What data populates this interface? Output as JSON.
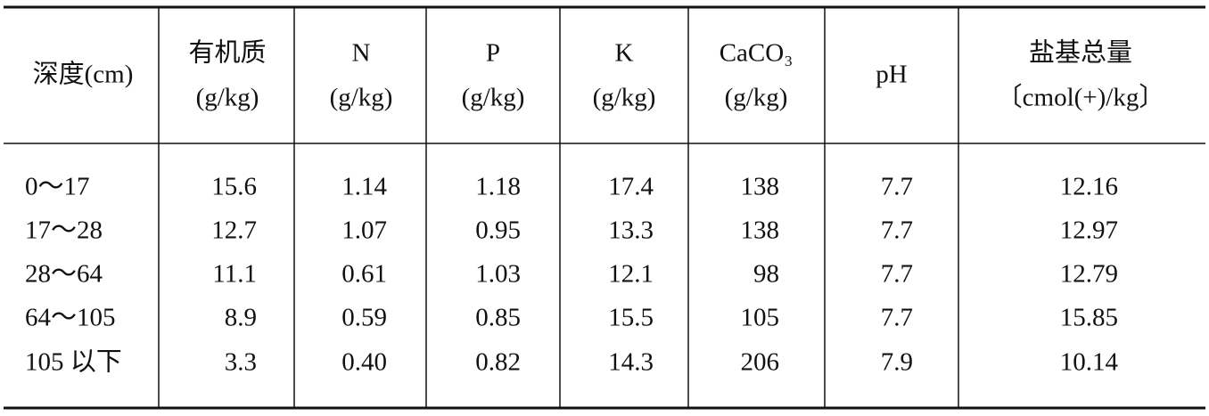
{
  "table": {
    "header": [
      [
        "深度(cm)"
      ],
      [
        "有机质",
        "(g/kg)"
      ],
      [
        "N",
        "(g/kg)"
      ],
      [
        "P",
        "(g/kg)"
      ],
      [
        "K",
        "(g/kg)"
      ],
      [
        "CaCO₃",
        "(g/kg)"
      ],
      [
        "pH"
      ],
      [
        "盐基总量",
        "〔cmol(+)/kg〕"
      ]
    ],
    "rows": [
      [
        "0～17",
        "15.6",
        "1.14",
        "1.18",
        "17.4",
        "138",
        "7.7",
        "12.16"
      ],
      [
        "17～28",
        "12.7",
        "1.07",
        "0.95",
        "13.3",
        "138",
        "7.7",
        "12.97"
      ],
      [
        "28～64",
        "11.1",
        "0.61",
        "1.03",
        "12.1",
        "98",
        "7.7",
        "12.79"
      ],
      [
        "64～105",
        "8.9",
        "0.59",
        "0.85",
        "15.5",
        "105",
        "7.7",
        "15.85"
      ],
      [
        "105 以下",
        "3.3",
        "0.40",
        "0.82",
        "14.3",
        "206",
        "7.9",
        "10.14"
      ]
    ]
  }
}
